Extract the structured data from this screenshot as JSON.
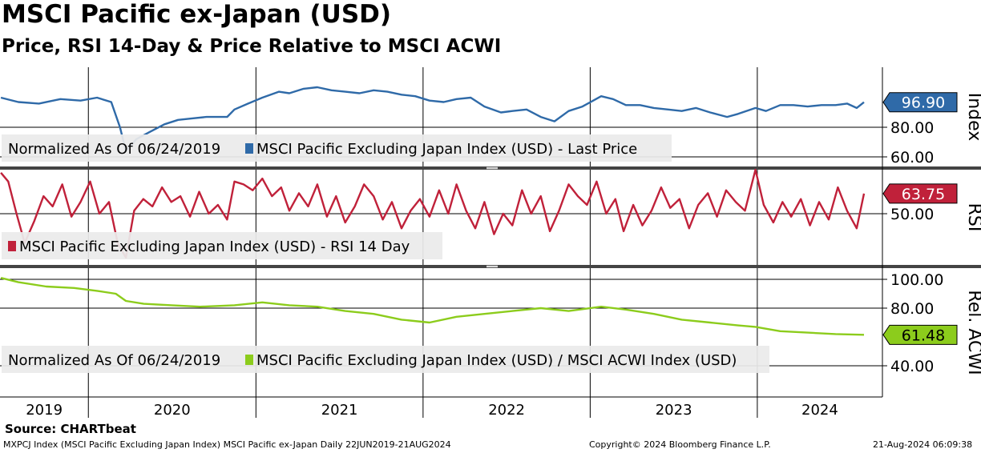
{
  "header": {
    "title": "MSCI Pacific ex-Japan (USD)",
    "subtitle": "Price, RSI 14-Day & Price Relative to MSCI ACWI"
  },
  "source": "Source: CHARTbeat",
  "footer": {
    "left": "MXPCJ Index (MSCI Pacific Excluding Japan Index) MSCI Pacific ex-Japan  Daily 22JUN2019-21AUG2024",
    "center": "Copyright© 2024 Bloomberg Finance L.P.",
    "right": "21-Aug-2024 06:09:38"
  },
  "colors": {
    "price": "#2f6aa8",
    "rsi": "#c0213a",
    "relative": "#8ccc1c",
    "grid": "#000000",
    "legend_bg": "#ebebeb"
  },
  "chart_data": [
    {
      "type": "line",
      "panel": "price",
      "axis_title": "Index",
      "ylim": [
        60,
        110
      ],
      "yticks": [
        "60.00",
        "80.00"
      ],
      "last_value_label": "96.90",
      "legend_prefix": "Normalized As Of 06/24/2019",
      "series": [
        {
          "name": "MSCI Pacific Excluding Japan Index (USD) - Last Price",
          "x": [
            "2019-06-24",
            "2019-08-01",
            "2019-09-15",
            "2019-11-01",
            "2019-12-15",
            "2020-01-20",
            "2020-02-20",
            "2020-03-10",
            "2020-03-23",
            "2020-04-15",
            "2020-05-15",
            "2020-06-15",
            "2020-07-15",
            "2020-08-15",
            "2020-09-15",
            "2020-10-30",
            "2020-11-15",
            "2020-12-15",
            "2021-01-15",
            "2021-02-20",
            "2021-03-15",
            "2021-04-15",
            "2021-05-15",
            "2021-06-15",
            "2021-07-15",
            "2021-08-15",
            "2021-09-15",
            "2021-10-15",
            "2021-11-15",
            "2021-12-15",
            "2022-01-15",
            "2022-02-15",
            "2022-03-15",
            "2022-04-15",
            "2022-05-15",
            "2022-06-20",
            "2022-07-15",
            "2022-08-15",
            "2022-09-15",
            "2022-10-15",
            "2022-11-15",
            "2022-12-15",
            "2023-01-25",
            "2023-02-20",
            "2023-03-20",
            "2023-04-20",
            "2023-05-20",
            "2023-06-20",
            "2023-07-20",
            "2023-08-20",
            "2023-09-20",
            "2023-10-27",
            "2023-11-20",
            "2023-12-28",
            "2024-01-20",
            "2024-02-20",
            "2024-03-20",
            "2024-04-20",
            "2024-05-20",
            "2024-06-20",
            "2024-07-15",
            "2024-08-05",
            "2024-08-21"
          ],
          "y": [
            100,
            97,
            96,
            99,
            98,
            100,
            97,
            80,
            64,
            72,
            77,
            82,
            85,
            86,
            87,
            87,
            92,
            96,
            100,
            104,
            103,
            106,
            107,
            105,
            104,
            103,
            105,
            104,
            102,
            101,
            98,
            97,
            99,
            100,
            94,
            90,
            91,
            92,
            87,
            84,
            91,
            94,
            101,
            99,
            95,
            95,
            93,
            92,
            91,
            93,
            90,
            87,
            89,
            93,
            91,
            95,
            95,
            94,
            95,
            95,
            96,
            93,
            96.9
          ]
        }
      ]
    },
    {
      "type": "line",
      "panel": "rsi",
      "axis_title": "RSI",
      "ylim": [
        15,
        95
      ],
      "yticks": [
        "50.00"
      ],
      "last_value_label": "63.75",
      "series": [
        {
          "name": "MSCI Pacific Excluding Japan Index (USD) - RSI 14 Day",
          "x": [
            "2019-06-24",
            "2019-07-10",
            "2019-07-28",
            "2019-08-15",
            "2019-09-05",
            "2019-09-25",
            "2019-10-15",
            "2019-11-05",
            "2019-11-25",
            "2019-12-15",
            "2020-01-05",
            "2020-01-25",
            "2020-02-15",
            "2020-03-05",
            "2020-03-23",
            "2020-04-10",
            "2020-04-30",
            "2020-05-20",
            "2020-06-10",
            "2020-06-30",
            "2020-07-20",
            "2020-08-10",
            "2020-08-30",
            "2020-09-20",
            "2020-10-10",
            "2020-10-30",
            "2020-11-15",
            "2020-12-05",
            "2020-12-25",
            "2021-01-15",
            "2021-02-05",
            "2021-02-25",
            "2021-03-15",
            "2021-04-05",
            "2021-04-25",
            "2021-05-15",
            "2021-06-05",
            "2021-06-25",
            "2021-07-15",
            "2021-08-05",
            "2021-08-25",
            "2021-09-15",
            "2021-10-05",
            "2021-10-25",
            "2021-11-15",
            "2021-12-05",
            "2021-12-25",
            "2022-01-15",
            "2022-02-05",
            "2022-02-25",
            "2022-03-15",
            "2022-04-05",
            "2022-04-25",
            "2022-05-15",
            "2022-06-05",
            "2022-06-25",
            "2022-07-15",
            "2022-08-05",
            "2022-08-25",
            "2022-09-15",
            "2022-10-05",
            "2022-10-25",
            "2022-11-15",
            "2022-12-05",
            "2022-12-25",
            "2023-01-15",
            "2023-02-05",
            "2023-02-25",
            "2023-03-15",
            "2023-04-05",
            "2023-04-25",
            "2023-05-15",
            "2023-06-05",
            "2023-06-25",
            "2023-07-15",
            "2023-08-05",
            "2023-08-25",
            "2023-09-15",
            "2023-10-05",
            "2023-10-25",
            "2023-11-15",
            "2023-12-05",
            "2023-12-28",
            "2024-01-15",
            "2024-02-05",
            "2024-02-25",
            "2024-03-15",
            "2024-04-05",
            "2024-04-25",
            "2024-05-15",
            "2024-06-05",
            "2024-06-25",
            "2024-07-15",
            "2024-08-05",
            "2024-08-21"
          ],
          "y": [
            78,
            72,
            50,
            30,
            45,
            62,
            55,
            70,
            48,
            58,
            72,
            50,
            58,
            30,
            20,
            52,
            60,
            55,
            68,
            58,
            62,
            48,
            65,
            50,
            56,
            46,
            72,
            70,
            66,
            74,
            62,
            68,
            52,
            64,
            55,
            70,
            48,
            62,
            44,
            55,
            70,
            62,
            46,
            58,
            40,
            52,
            60,
            48,
            66,
            50,
            70,
            52,
            40,
            58,
            36,
            50,
            42,
            66,
            50,
            62,
            38,
            52,
            70,
            62,
            56,
            72,
            50,
            60,
            38,
            56,
            42,
            52,
            68,
            54,
            60,
            40,
            56,
            64,
            48,
            66,
            58,
            52,
            80,
            56,
            44,
            58,
            48,
            60,
            42,
            58,
            46,
            68,
            52,
            40,
            63.75
          ]
        }
      ]
    },
    {
      "type": "line",
      "panel": "relative",
      "axis_title": "Rel. ACWI",
      "ylim": [
        35,
        105
      ],
      "yticks": [
        "40.00",
        "80.00",
        "100.00"
      ],
      "last_value_label": "61.48",
      "legend_prefix": "Normalized As Of 06/24/2019",
      "series": [
        {
          "name": "MSCI Pacific Excluding Japan Index (USD) / MSCI ACWI Index (USD)",
          "x": [
            "2019-06-24",
            "2019-08-01",
            "2019-10-01",
            "2019-12-01",
            "2020-01-20",
            "2020-03-01",
            "2020-03-23",
            "2020-05-01",
            "2020-07-01",
            "2020-09-01",
            "2020-11-15",
            "2021-01-15",
            "2021-03-15",
            "2021-05-15",
            "2021-07-15",
            "2021-09-15",
            "2021-11-15",
            "2022-01-15",
            "2022-03-15",
            "2022-05-15",
            "2022-07-15",
            "2022-09-15",
            "2022-11-15",
            "2023-01-25",
            "2023-03-20",
            "2023-05-20",
            "2023-07-20",
            "2023-09-20",
            "2023-11-20",
            "2023-12-28",
            "2024-02-20",
            "2024-04-20",
            "2024-06-20",
            "2024-08-21"
          ],
          "y": [
            101,
            98,
            95,
            94,
            92,
            90,
            85,
            83,
            82,
            81,
            82,
            84,
            82,
            81,
            78,
            76,
            72,
            70,
            74,
            76,
            78,
            80,
            78,
            81,
            79,
            76,
            72,
            70,
            68,
            67,
            64,
            63,
            62,
            61.48
          ]
        }
      ]
    }
  ],
  "x_axis": {
    "years": [
      "2019",
      "2020",
      "2021",
      "2022",
      "2023",
      "2024"
    ]
  }
}
